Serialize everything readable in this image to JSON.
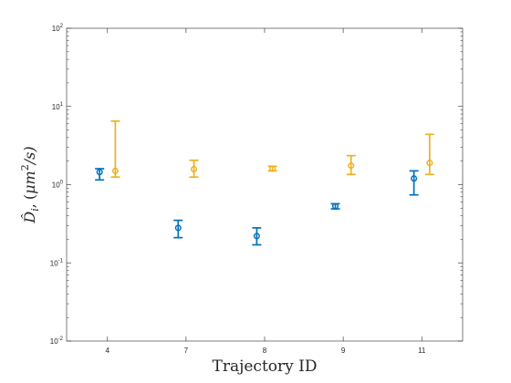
{
  "chart_data": {
    "type": "scatter",
    "title": "",
    "xlabel": "Trajectory ID",
    "ylabel_parts": {
      "head": "D̂",
      "sub": "i",
      "comma": ",",
      "open": "(",
      "mu": "μm",
      "sup": "2",
      "tail": "/s)"
    },
    "yscale": "log",
    "ylim": [
      0.01,
      100
    ],
    "yticks": [
      {
        "value": 0.01,
        "base": "10",
        "exp": "-2"
      },
      {
        "value": 0.1,
        "base": "10",
        "exp": "-1"
      },
      {
        "value": 1,
        "base": "10",
        "exp": "0"
      },
      {
        "value": 10,
        "base": "10",
        "exp": "1"
      },
      {
        "value": 100,
        "base": "10",
        "exp": "2"
      }
    ],
    "categories": [
      "4",
      "7",
      "8",
      "9",
      "11"
    ],
    "grid": false,
    "series": [
      {
        "color": "#0072BD",
        "offset": -0.1,
        "points": [
          {
            "category": "4",
            "y": 1.45,
            "lower": 1.15,
            "upper": 1.6
          },
          {
            "category": "7",
            "y": 0.28,
            "lower": 0.21,
            "upper": 0.35
          },
          {
            "category": "8",
            "y": 0.22,
            "lower": 0.17,
            "upper": 0.28
          },
          {
            "category": "9",
            "y": 0.53,
            "lower": 0.49,
            "upper": 0.57
          },
          {
            "category": "11",
            "y": 1.2,
            "lower": 0.74,
            "upper": 1.5
          }
        ]
      },
      {
        "color": "#EDB120",
        "offset": 0.1,
        "points": [
          {
            "category": "4",
            "y": 1.5,
            "lower": 1.25,
            "upper": 6.5
          },
          {
            "category": "7",
            "y": 1.58,
            "lower": 1.25,
            "upper": 2.05
          },
          {
            "category": "8",
            "y": 1.6,
            "lower": 1.5,
            "upper": 1.72
          },
          {
            "category": "9",
            "y": 1.75,
            "lower": 1.35,
            "upper": 2.35
          },
          {
            "category": "11",
            "y": 1.9,
            "lower": 1.35,
            "upper": 4.4
          }
        ]
      }
    ]
  }
}
